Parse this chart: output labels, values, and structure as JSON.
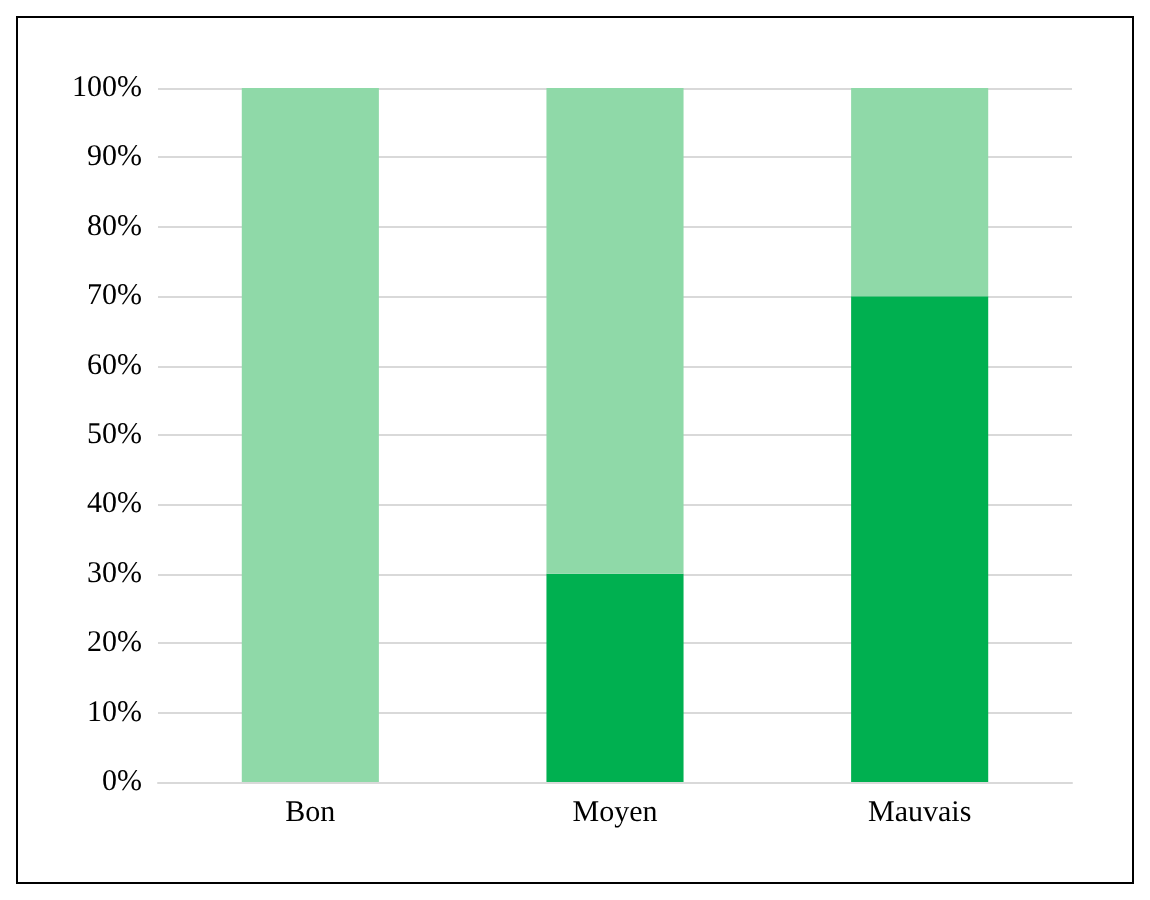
{
  "chart_data": {
    "type": "bar",
    "stacked": true,
    "categories": [
      "Bon",
      "Moyen",
      "Mauvais"
    ],
    "series": [
      {
        "color": "#00b050",
        "values": [
          0,
          30,
          70
        ]
      },
      {
        "color": "#8fd9a8",
        "values": [
          100,
          70,
          30
        ]
      }
    ],
    "ylim": [
      0,
      100
    ],
    "yticks": [
      {
        "value": 0,
        "label": "0%"
      },
      {
        "value": 10,
        "label": "10%"
      },
      {
        "value": 20,
        "label": "20%"
      },
      {
        "value": 30,
        "label": "30%"
      },
      {
        "value": 40,
        "label": "40%"
      },
      {
        "value": 50,
        "label": "50%"
      },
      {
        "value": 60,
        "label": "60%"
      },
      {
        "value": 70,
        "label": "70%"
      },
      {
        "value": 80,
        "label": "80%"
      },
      {
        "value": 90,
        "label": "90%"
      },
      {
        "value": 100,
        "label": "100%"
      }
    ],
    "grid": "y"
  }
}
